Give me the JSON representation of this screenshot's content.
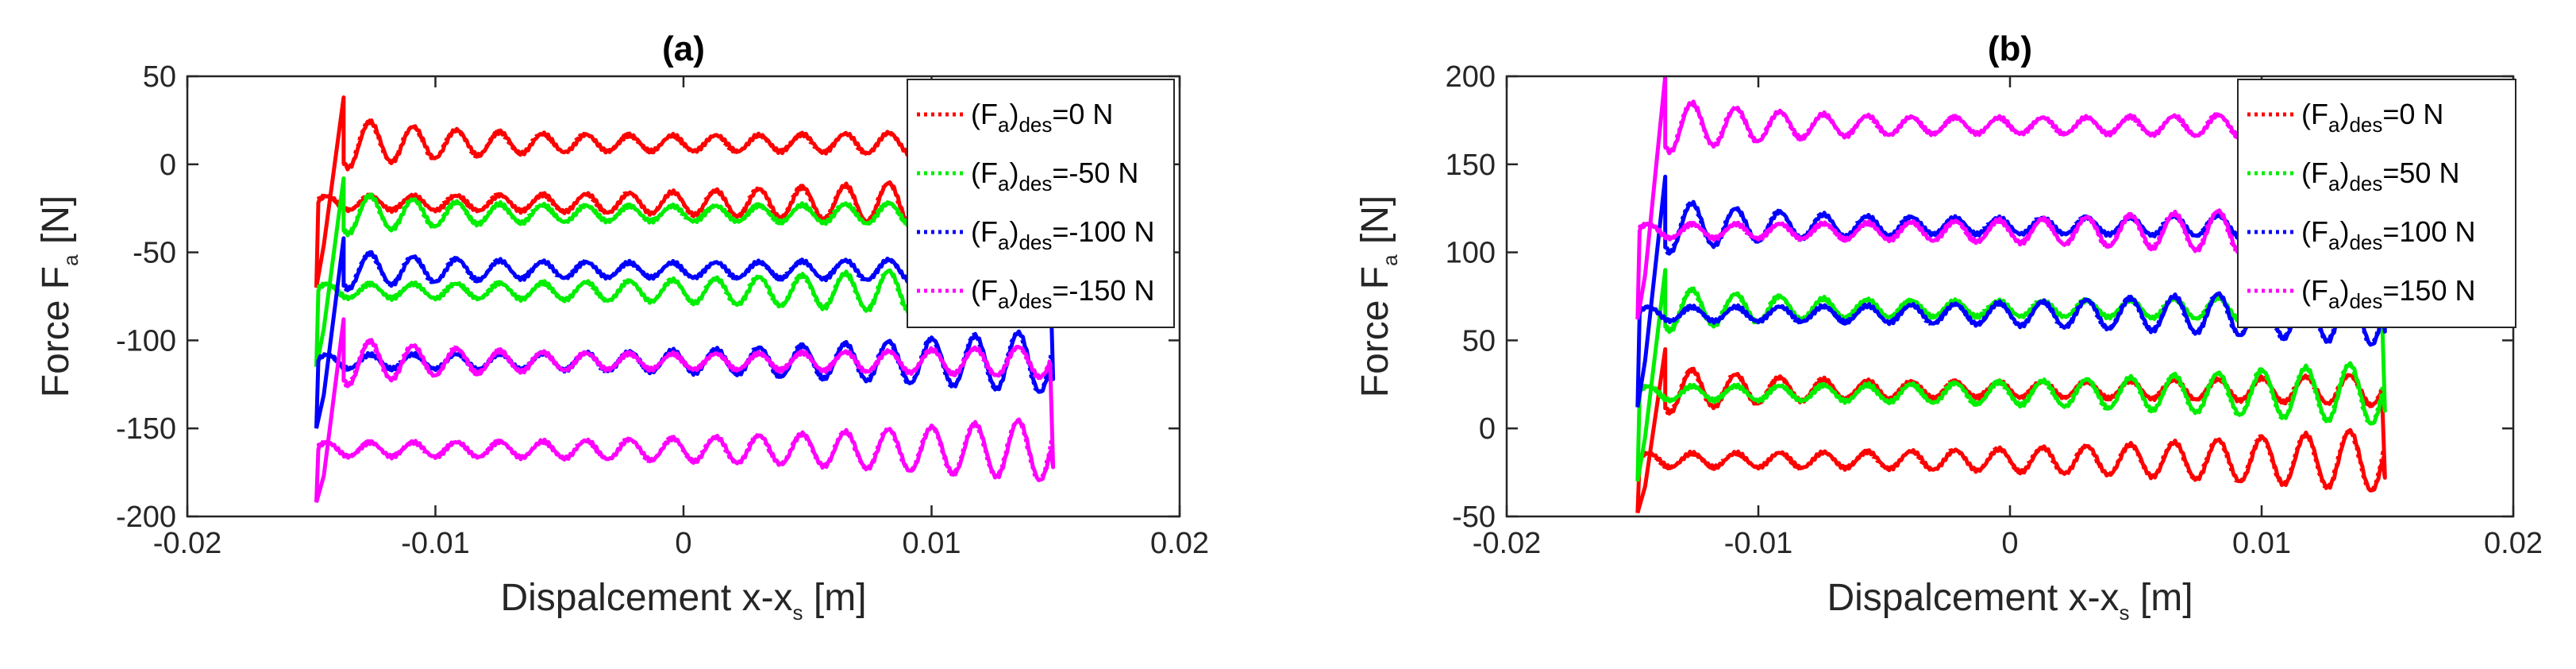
{
  "chart_data": [
    {
      "type": "line",
      "title": "(a)",
      "xlabel": "Dispalcement x-x",
      "xlabel_sub": "s",
      "xlabel_unit": " [m]",
      "ylabel": "Force F",
      "ylabel_sub": "a",
      "ylabel_unit": " [N]",
      "xlim": [
        -0.02,
        0.02
      ],
      "ylim": [
        -200,
        50
      ],
      "xticks": [
        -0.02,
        -0.01,
        0,
        0.01,
        0.02
      ],
      "xtick_labels": [
        "-0.02",
        "-0.01",
        "0",
        "0.01",
        "0.02"
      ],
      "yticks": [
        -200,
        -150,
        -100,
        -50,
        0,
        50
      ],
      "ytick_labels": [
        "-200",
        "-150",
        "-100",
        "-50",
        "0",
        "50"
      ],
      "grid": false,
      "legend_position": "top-right",
      "series": [
        {
          "legend_prefix": "(F",
          "legend_sub1": "a",
          "legend_mid": ")",
          "legend_sub2": "des",
          "legend_suffix": "=0 N",
          "color": "#ff0000",
          "setpoint": 0,
          "upper": 12,
          "lower": -22,
          "start_force": -70,
          "peak_force": 38
        },
        {
          "legend_prefix": "(F",
          "legend_sub1": "a",
          "legend_mid": ")",
          "legend_sub2": "des",
          "legend_suffix": "=-50 N",
          "color": "#00ee00",
          "setpoint": -50,
          "upper": -28,
          "lower": -72,
          "start_force": -115,
          "peak_force": -8
        },
        {
          "legend_prefix": "(F",
          "legend_sub1": "a",
          "legend_mid": ")",
          "legend_sub2": "des",
          "legend_suffix": "=-100 N",
          "color": "#0000ff",
          "setpoint": -100,
          "upper": -60,
          "lower": -112,
          "start_force": -150,
          "peak_force": -42
        },
        {
          "legend_prefix": "(F",
          "legend_sub1": "a",
          "legend_mid": ")",
          "legend_sub2": "des",
          "legend_suffix": "=-150 N",
          "color": "#ff00ff",
          "setpoint": -150,
          "upper": -112,
          "lower": -162,
          "start_force": -192,
          "peak_force": -88
        }
      ]
    },
    {
      "type": "line",
      "title": "(b)",
      "xlabel": "Dispalcement x-x",
      "xlabel_sub": "s",
      "xlabel_unit": " [m]",
      "ylabel": "Force F",
      "ylabel_sub": "a",
      "ylabel_unit": " [N]",
      "xlim": [
        -0.02,
        0.02
      ],
      "ylim": [
        -50,
        200
      ],
      "xticks": [
        -0.02,
        -0.01,
        0,
        0.01,
        0.02
      ],
      "xtick_labels": [
        "-0.02",
        "-0.01",
        "0",
        "0.01",
        "0.02"
      ],
      "yticks": [
        -50,
        0,
        50,
        100,
        150,
        200
      ],
      "ytick_labels": [
        "-50",
        "0",
        "50",
        "100",
        "150",
        "200"
      ],
      "grid": false,
      "legend_position": "top-right",
      "series": [
        {
          "legend_prefix": "(F",
          "legend_sub1": "a",
          "legend_mid": ")",
          "legend_sub2": "des",
          "legend_suffix": "=0 N",
          "color": "#ff0000",
          "setpoint": 0,
          "upper": 22,
          "lower": -18,
          "start_force": -48,
          "peak_force": 45
        },
        {
          "legend_prefix": "(F",
          "legend_sub1": "a",
          "legend_mid": ")",
          "legend_sub2": "des",
          "legend_suffix": "=50 N",
          "color": "#00ee00",
          "setpoint": 50,
          "upper": 68,
          "lower": 20,
          "start_force": -30,
          "peak_force": 90
        },
        {
          "legend_prefix": "(F",
          "legend_sub1": "a",
          "legend_mid": ")",
          "legend_sub2": "des",
          "legend_suffix": "=100 N",
          "color": "#0000ff",
          "setpoint": 100,
          "upper": 115,
          "lower": 65,
          "start_force": 12,
          "peak_force": 143
        },
        {
          "legend_prefix": "(F",
          "legend_sub1": "a",
          "legend_mid": ")",
          "legend_sub2": "des",
          "legend_suffix": "=150 N",
          "color": "#ff00ff",
          "setpoint": 150,
          "upper": 172,
          "lower": 112,
          "start_force": 62,
          "peak_force": 200
        }
      ]
    }
  ]
}
